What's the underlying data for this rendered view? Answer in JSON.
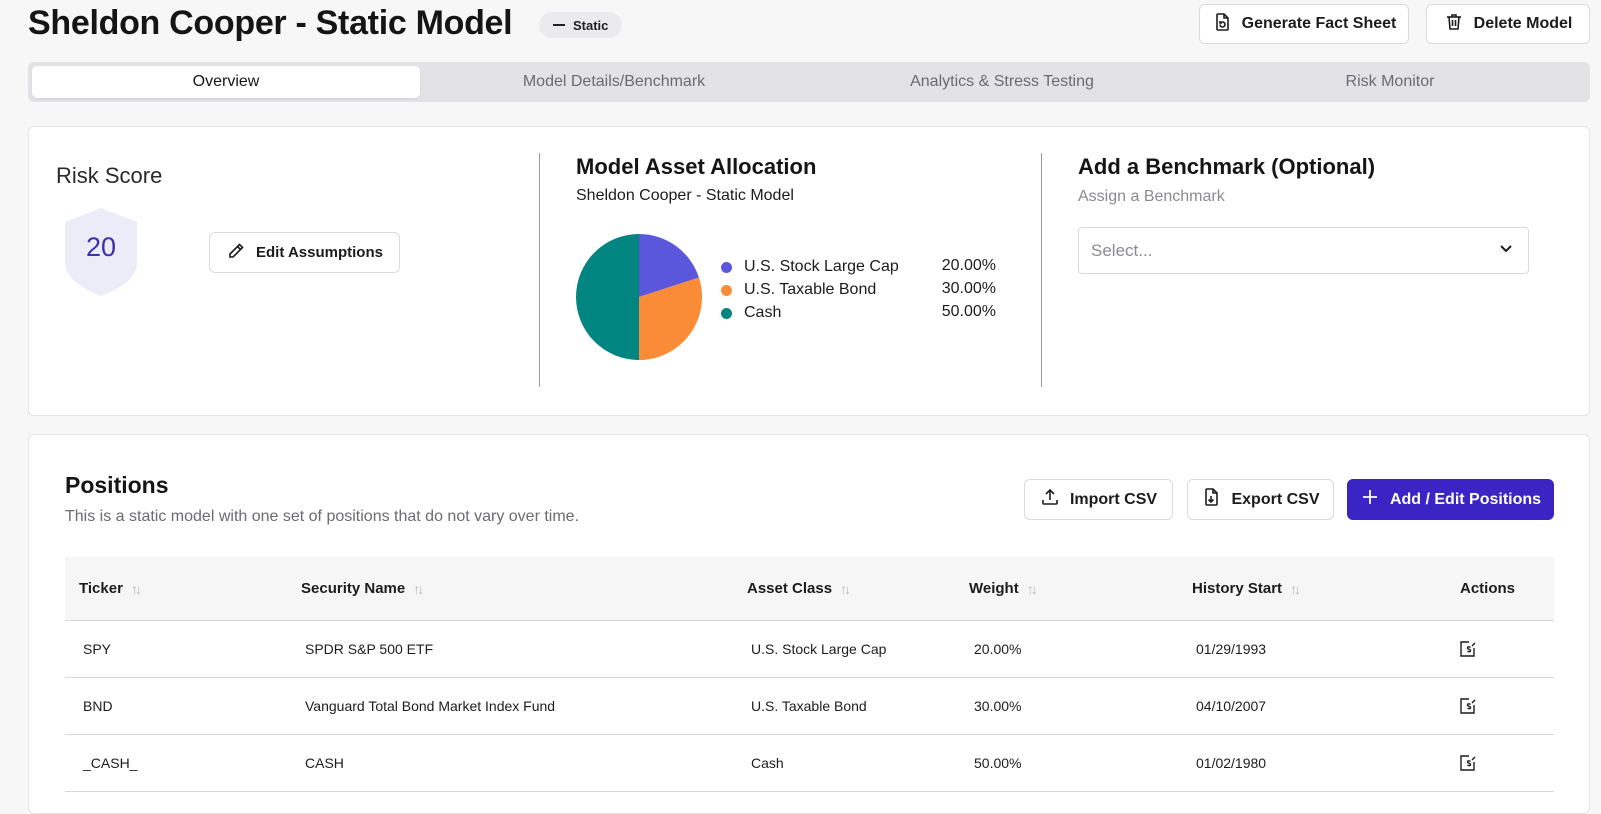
{
  "header": {
    "title": "Sheldon Cooper - Static Model",
    "badge": "Static",
    "generate_label": "Generate Fact Sheet",
    "delete_label": "Delete Model"
  },
  "tabs": [
    "Overview",
    "Model Details/Benchmark",
    "Analytics & Stress Testing",
    "Risk Monitor"
  ],
  "active_tab": "Overview",
  "risk": {
    "title": "Risk Score",
    "score": "20",
    "edit_label": "Edit Assumptions"
  },
  "allocation": {
    "title": "Model Asset Allocation",
    "subtitle": "Sheldon Cooper - Static Model"
  },
  "chart_data": {
    "type": "pie",
    "title": "Model Asset Allocation",
    "categories": [
      "U.S. Stock Large Cap",
      "U.S. Taxable Bond",
      "Cash"
    ],
    "values": [
      20.0,
      30.0,
      50.0
    ],
    "labels": [
      "20.00%",
      "30.00%",
      "50.00%"
    ],
    "colors": [
      "#5a57dc",
      "#fa8c37",
      "#008580"
    ],
    "legend": "right"
  },
  "benchmark": {
    "title": "Add a Benchmark (Optional)",
    "subtitle": "Assign a Benchmark",
    "placeholder": "Select..."
  },
  "positions": {
    "title": "Positions",
    "description": "This is a static model with one set of positions that do not vary over time.",
    "import_label": "Import CSV",
    "export_label": "Export CSV",
    "add_label": "Add / Edit Positions",
    "columns": [
      "Ticker",
      "Security Name",
      "Asset Class",
      "Weight",
      "History Start",
      "Actions"
    ],
    "rows": [
      {
        "ticker": "SPY",
        "name": "SPDR S&P 500 ETF",
        "asset_class": "U.S. Stock Large Cap",
        "weight": "20.00%",
        "history_start": "01/29/1993"
      },
      {
        "ticker": "BND",
        "name": "Vanguard Total Bond Market Index Fund",
        "asset_class": "U.S. Taxable Bond",
        "weight": "30.00%",
        "history_start": "04/10/2007"
      },
      {
        "ticker": "_CASH_",
        "name": "CASH",
        "asset_class": "Cash",
        "weight": "50.00%",
        "history_start": "01/02/1980"
      }
    ]
  },
  "colors": {
    "accent": "#3a24c4",
    "shield_fill": "#ecebf8",
    "score_text": "#3c2fb0"
  }
}
